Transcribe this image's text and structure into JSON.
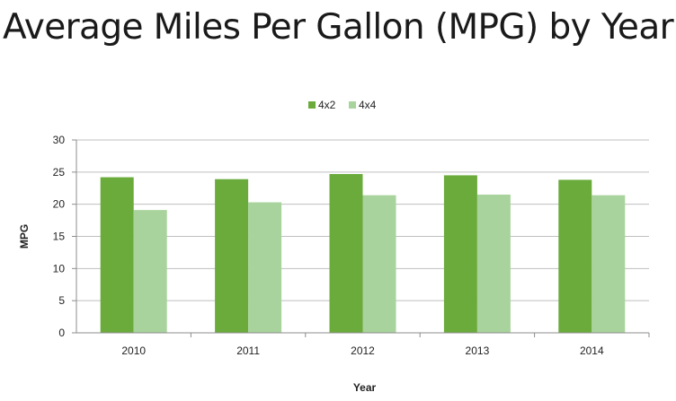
{
  "chart_data": {
    "type": "bar",
    "title": "Average Miles Per Gallon (MPG) by Year",
    "xlabel": "Year",
    "ylabel": "MPG",
    "categories": [
      "2010",
      "2011",
      "2012",
      "2013",
      "2014"
    ],
    "series": [
      {
        "name": "4x2",
        "color": "#6aab3c",
        "values": [
          24.2,
          23.9,
          24.7,
          24.5,
          23.8
        ]
      },
      {
        "name": "4x4",
        "color": "#a9d39c",
        "values": [
          19.1,
          20.3,
          21.4,
          21.5,
          21.4
        ]
      }
    ],
    "ylim": [
      0,
      30
    ],
    "yticks": [
      0,
      5,
      10,
      15,
      20,
      25,
      30
    ],
    "grid": true,
    "legend_position": "top-center"
  }
}
